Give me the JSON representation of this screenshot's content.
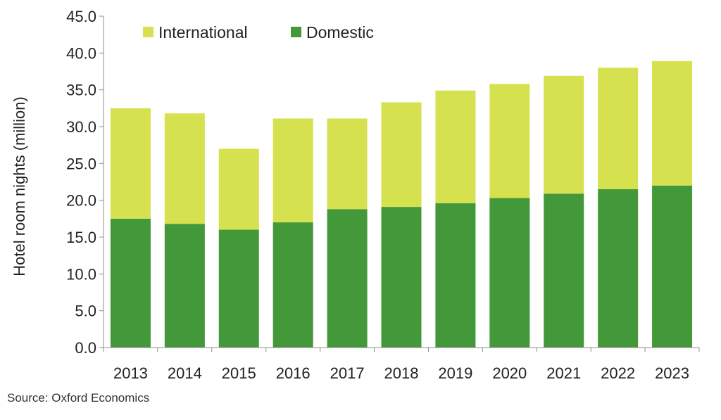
{
  "chart_data": {
    "type": "bar",
    "stacked": true,
    "categories": [
      "2013",
      "2014",
      "2015",
      "2016",
      "2017",
      "2018",
      "2019",
      "2020",
      "2021",
      "2022",
      "2023"
    ],
    "series": [
      {
        "name": "Domestic",
        "color": "#43983A",
        "values": [
          17.5,
          16.8,
          16.0,
          17.0,
          18.8,
          19.1,
          19.6,
          20.3,
          20.9,
          21.5,
          22.0
        ]
      },
      {
        "name": "International",
        "color": "#D6E14F",
        "values": [
          15.0,
          15.0,
          11.0,
          14.1,
          12.3,
          14.2,
          15.3,
          15.5,
          16.0,
          16.5,
          16.9
        ]
      }
    ],
    "legend_order": [
      "International",
      "Domestic"
    ],
    "legend_position": "top-left",
    "ylabel": "Hotel room nights (million)",
    "xlabel": "",
    "ylim": [
      0,
      45
    ],
    "yticks": [
      "0.0",
      "5.0",
      "10.0",
      "15.0",
      "20.0",
      "25.0",
      "30.0",
      "35.0",
      "40.0",
      "45.0"
    ],
    "grid": false
  },
  "source": "Source:  Oxford Economics"
}
